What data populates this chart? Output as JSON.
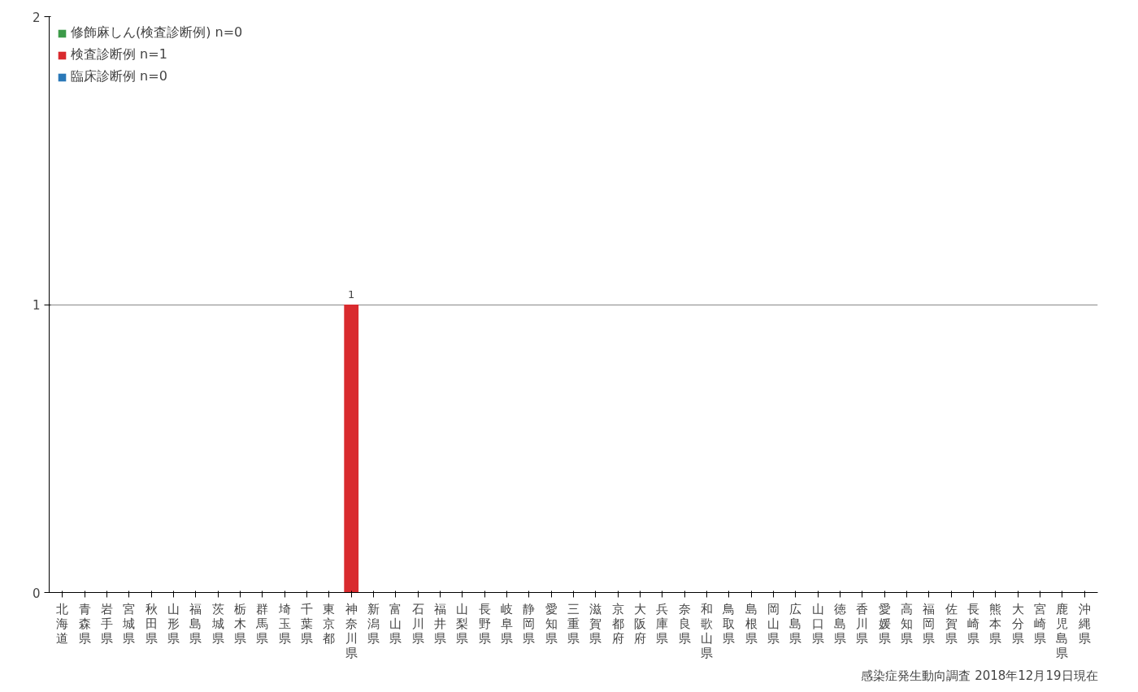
{
  "chart_data": {
    "type": "bar",
    "stacked": true,
    "categories": [
      "北海道",
      "青森県",
      "岩手県",
      "宮城県",
      "秋田県",
      "山形県",
      "福島県",
      "茨城県",
      "栃木県",
      "群馬県",
      "埼玉県",
      "千葉県",
      "東京都",
      "神奈川県",
      "新潟県",
      "富山県",
      "石川県",
      "福井県",
      "山梨県",
      "長野県",
      "岐阜県",
      "静岡県",
      "愛知県",
      "三重県",
      "滋賀県",
      "京都府",
      "大阪府",
      "兵庫県",
      "奈良県",
      "和歌山県",
      "鳥取県",
      "島根県",
      "岡山県",
      "広島県",
      "山口県",
      "徳島県",
      "香川県",
      "愛媛県",
      "高知県",
      "福岡県",
      "佐賀県",
      "長崎県",
      "熊本県",
      "大分県",
      "宮崎県",
      "鹿児島県",
      "沖縄県"
    ],
    "series": [
      {
        "name": "修飾麻しん(検査診断例) n=0",
        "color": "#3c9a48",
        "values": [
          0,
          0,
          0,
          0,
          0,
          0,
          0,
          0,
          0,
          0,
          0,
          0,
          0,
          0,
          0,
          0,
          0,
          0,
          0,
          0,
          0,
          0,
          0,
          0,
          0,
          0,
          0,
          0,
          0,
          0,
          0,
          0,
          0,
          0,
          0,
          0,
          0,
          0,
          0,
          0,
          0,
          0,
          0,
          0,
          0,
          0,
          0
        ]
      },
      {
        "name": "検査診断例 n=1",
        "color": "#d92a2e",
        "values": [
          0,
          0,
          0,
          0,
          0,
          0,
          0,
          0,
          0,
          0,
          0,
          0,
          0,
          1,
          0,
          0,
          0,
          0,
          0,
          0,
          0,
          0,
          0,
          0,
          0,
          0,
          0,
          0,
          0,
          0,
          0,
          0,
          0,
          0,
          0,
          0,
          0,
          0,
          0,
          0,
          0,
          0,
          0,
          0,
          0,
          0,
          0
        ],
        "value_labels": [
          null,
          null,
          null,
          null,
          null,
          null,
          null,
          null,
          null,
          null,
          null,
          null,
          null,
          "1",
          null,
          null,
          null,
          null,
          null,
          null,
          null,
          null,
          null,
          null,
          null,
          null,
          null,
          null,
          null,
          null,
          null,
          null,
          null,
          null,
          null,
          null,
          null,
          null,
          null,
          null,
          null,
          null,
          null,
          null,
          null,
          null,
          null
        ]
      },
      {
        "name": "臨床診断例 n=0",
        "color": "#2a78b8",
        "values": [
          0,
          0,
          0,
          0,
          0,
          0,
          0,
          0,
          0,
          0,
          0,
          0,
          0,
          0,
          0,
          0,
          0,
          0,
          0,
          0,
          0,
          0,
          0,
          0,
          0,
          0,
          0,
          0,
          0,
          0,
          0,
          0,
          0,
          0,
          0,
          0,
          0,
          0,
          0,
          0,
          0,
          0,
          0,
          0,
          0,
          0,
          0
        ]
      }
    ],
    "ylim": [
      0,
      2
    ],
    "yticks": [
      0,
      1,
      2
    ],
    "grid": "y",
    "legend": "top left",
    "annotations": [
      "感染症発生動向調査 2018年12月19日現在"
    ]
  }
}
